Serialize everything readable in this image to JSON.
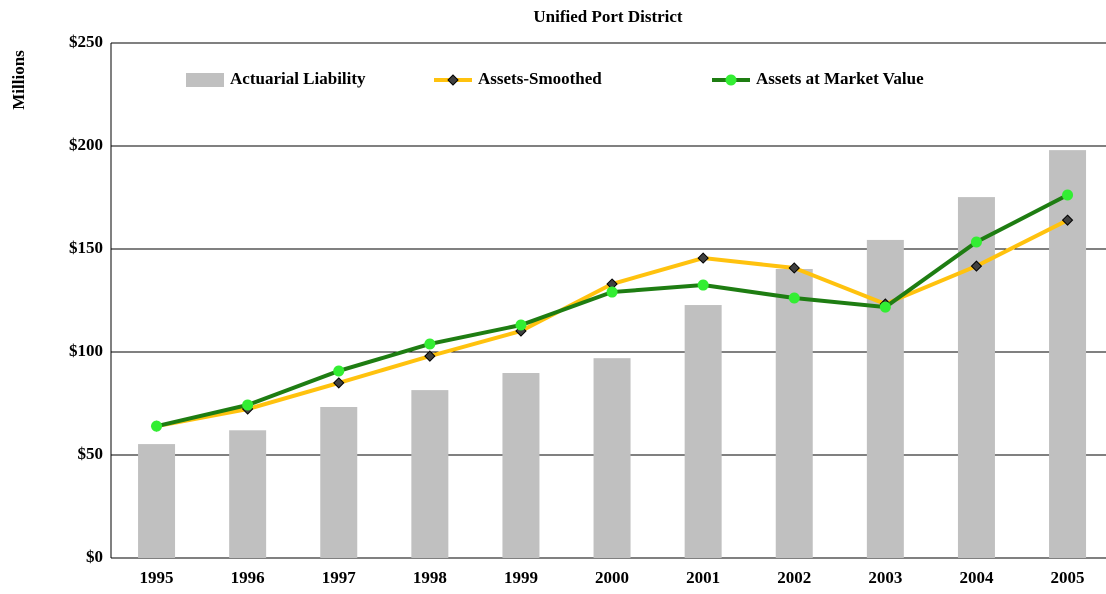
{
  "chart_data": {
    "type": "bar_line",
    "title": "Unified Port District",
    "y_label": "Millions",
    "categories": [
      "1995",
      "1996",
      "1997",
      "1998",
      "1999",
      "2000",
      "2001",
      "2002",
      "2003",
      "2004",
      "2005"
    ],
    "series": [
      {
        "name": "Actuarial Liability",
        "type": "bar",
        "color": "#c0c0c0",
        "values": [
          55.3,
          62,
          73.3,
          81.5,
          89.8,
          97,
          122.8,
          140.3,
          154.4,
          175.2,
          198
        ]
      },
      {
        "name": "Assets-Smoothed",
        "type": "line",
        "color": "#ffc20e",
        "marker": "diamond",
        "marker_color": "#404040",
        "values": [
          64,
          72.3,
          85,
          98,
          110.2,
          133,
          145.6,
          140.8,
          123.3,
          141.7,
          164
        ]
      },
      {
        "name": "Assets at Market Value",
        "type": "line",
        "color": "#1e7d12",
        "marker": "circle",
        "marker_color": "#33ee33",
        "values": [
          64,
          74.3,
          90.8,
          103.9,
          113.1,
          129.1,
          132.5,
          126.2,
          121.8,
          153.4,
          176.2
        ]
      }
    ],
    "ylim": [
      0,
      250
    ],
    "yticks": [
      {
        "value": 0,
        "label": "$0"
      },
      {
        "value": 50,
        "label": "$50"
      },
      {
        "value": 100,
        "label": "$100"
      },
      {
        "value": 150,
        "label": "$150"
      },
      {
        "value": 200,
        "label": "$200"
      },
      {
        "value": 250,
        "label": "$250"
      }
    ],
    "grid": true,
    "legend": "top"
  }
}
